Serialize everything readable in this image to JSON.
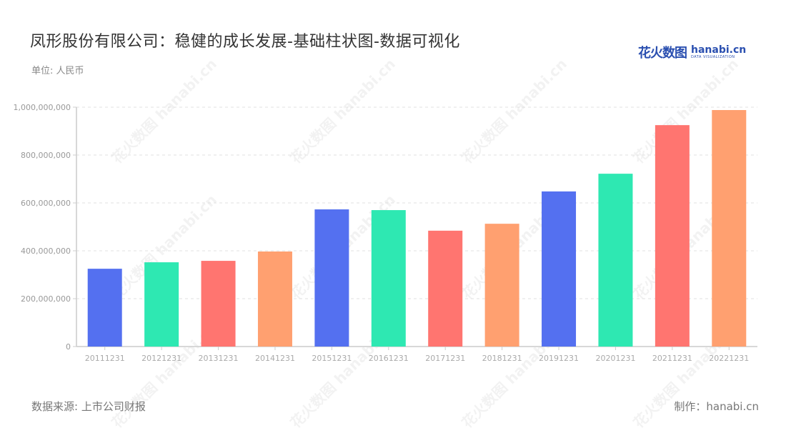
{
  "header": {
    "title": "凤形股份有限公司：稳健的成长发展-基础柱状图-数据可视化",
    "unit": "单位: 人民币"
  },
  "logo": {
    "cn": "花火数图",
    "en": "hanabi.cn",
    "sub": "DATA VISUALIZATION"
  },
  "footer": {
    "source": "数据来源: 上市公司财报",
    "credit": "制作：hanabi.cn"
  },
  "watermark": "花火数图 hanabi.cn",
  "colors": [
    "#5470f0",
    "#2ee8b2",
    "#ff7570",
    "#ffa070"
  ],
  "chart_data": {
    "type": "bar",
    "title": "凤形股份有限公司：稳健的成长发展-基础柱状图-数据可视化",
    "xlabel": "",
    "ylabel": "单位: 人民币",
    "categories": [
      "20111231",
      "20121231",
      "20131231",
      "20141231",
      "20151231",
      "20161231",
      "20171231",
      "20181231",
      "20191231",
      "20201231",
      "20211231",
      "20221231"
    ],
    "values": [
      325000000,
      352000000,
      358000000,
      397000000,
      573000000,
      570000000,
      484000000,
      513000000,
      648000000,
      722000000,
      925000000,
      988000000
    ],
    "ylim": [
      0,
      1000000000
    ],
    "yticks": [
      "0",
      "200,000,000",
      "400,000,000",
      "600,000,000",
      "800,000,000",
      "1,000,000,000"
    ],
    "grid": true,
    "legend": false
  }
}
